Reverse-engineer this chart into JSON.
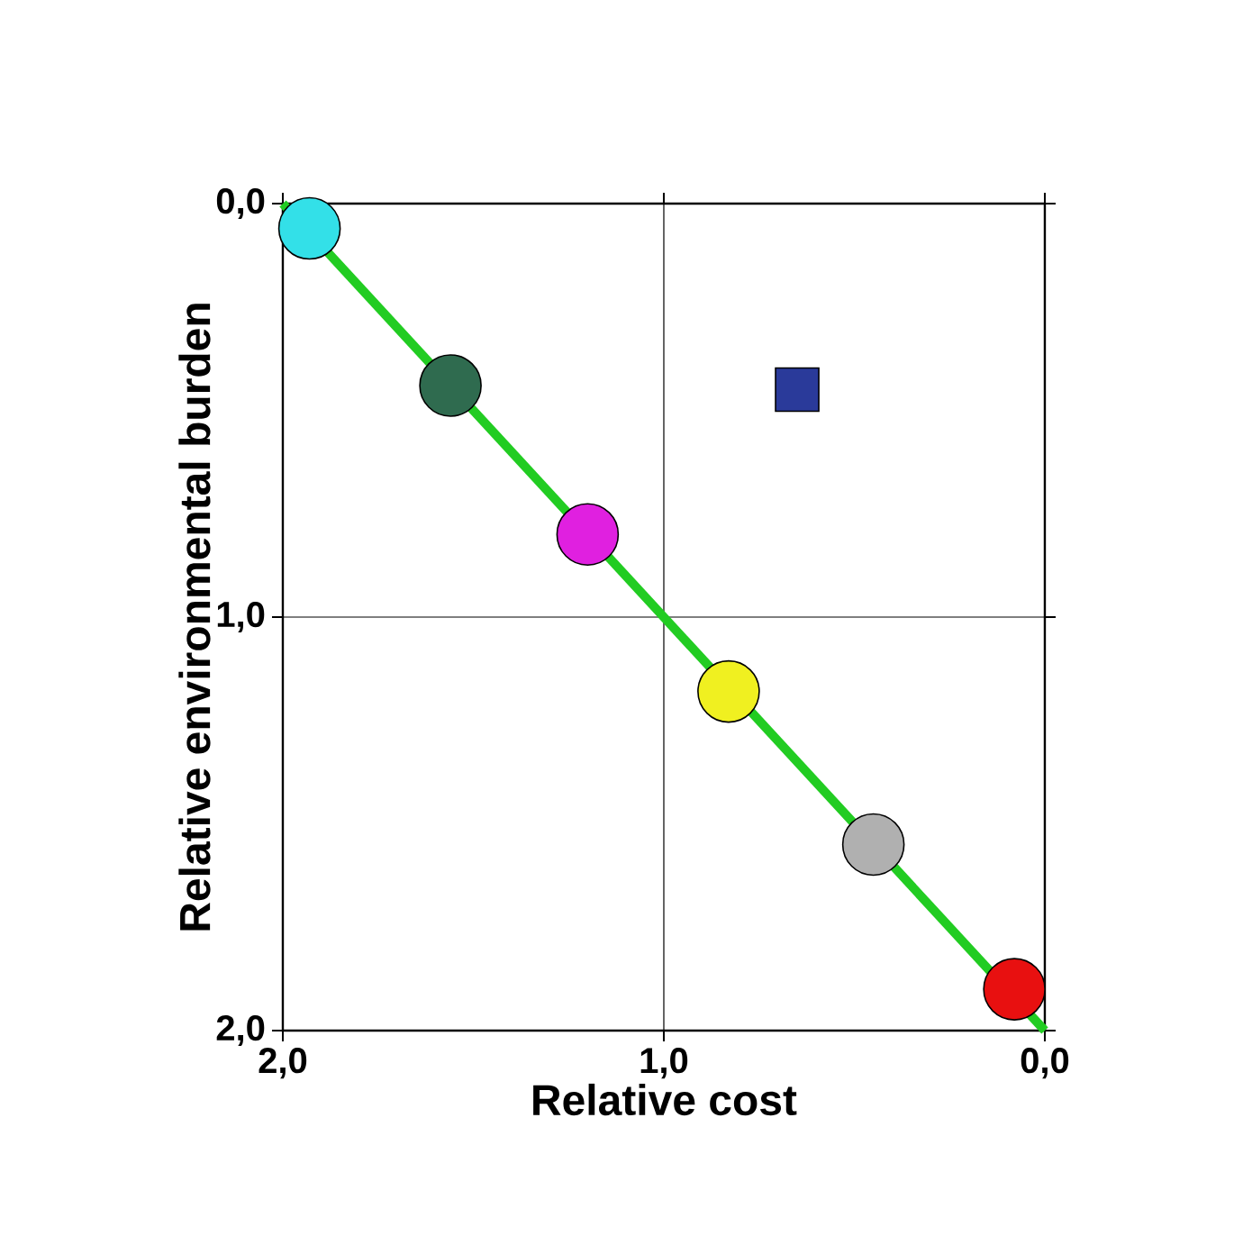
{
  "chart_data": {
    "type": "scatter",
    "xlabel": "Relative cost",
    "ylabel": "Relative environmental burden",
    "xlim": [
      2,
      0
    ],
    "ylim": [
      2,
      0
    ],
    "xticks": [
      {
        "value": 2,
        "label": "2,0"
      },
      {
        "value": 1,
        "label": "1,0"
      },
      {
        "value": 0,
        "label": "0,0"
      }
    ],
    "yticks": [
      {
        "value": 0,
        "label": "0,0"
      },
      {
        "value": 1,
        "label": "1,0"
      },
      {
        "value": 2,
        "label": "2,0"
      }
    ],
    "grid": true,
    "series": [
      {
        "marker": "circle",
        "x": [
          1.93,
          1.56,
          1.2,
          0.83,
          0.45,
          0.08
        ],
        "values": [
          0.06,
          0.44,
          0.8,
          1.18,
          1.55,
          1.9
        ],
        "colors": [
          "#33e0e8",
          "#2f6b4f",
          "#e020e0",
          "#f0f020",
          "#b0b0b0",
          "#e81010"
        ]
      },
      {
        "type": "scatter",
        "marker": "square",
        "x": [
          0.65
        ],
        "values": [
          0.45
        ],
        "color": "#2a3a9a"
      },
      {
        "type": "line",
        "marker": "none",
        "x": [
          2,
          0
        ],
        "values": [
          0,
          2
        ],
        "color": "#22cc22"
      }
    ]
  }
}
